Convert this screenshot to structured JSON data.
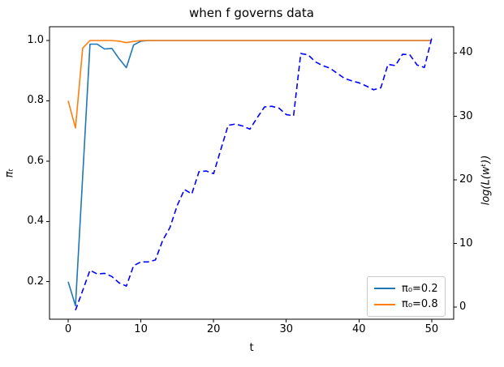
{
  "chart": {
    "title": "when f governs data",
    "xlabel": "t",
    "ylabel_left": "πₜ",
    "ylabel_right": "log(L(wᵗ))"
  },
  "legend": {
    "position": "lower right",
    "entries": [
      {
        "label": "π₀=0.2",
        "color": "#1f77b4"
      },
      {
        "label": "π₀=0.8",
        "color": "#ff7f0e"
      }
    ]
  },
  "chart_data": {
    "type": "line",
    "title": "when f governs data",
    "xlabel": "t",
    "ylabel_left": "πₜ",
    "ylabel_right": "log(L(wᵗ))",
    "grid": false,
    "legend_position": "lower right",
    "xlim": [
      -2.57,
      53.03
    ],
    "ylim_left": [
      0.0755,
      1.0458
    ],
    "ylim_right": [
      -1.92,
      44.12
    ],
    "xticks": [
      0,
      10,
      20,
      30,
      40,
      50
    ],
    "yticks_left": [
      0.2,
      0.4,
      0.6,
      0.8,
      1.0
    ],
    "yticks_right": [
      0,
      10,
      20,
      30,
      40
    ],
    "series": [
      {
        "id": "series-pi0-02",
        "name": "π₀=0.2",
        "axis": "left",
        "color": "#1f77b4",
        "style": "solid",
        "x": [
          0,
          1,
          2,
          3,
          4,
          5,
          6,
          7,
          8,
          9,
          10,
          11,
          12,
          13,
          14,
          15,
          16,
          17,
          18,
          19,
          20,
          21,
          22,
          23,
          24,
          25,
          26,
          27,
          28,
          29,
          30,
          31,
          32,
          33,
          34,
          35,
          36,
          37,
          38,
          39,
          40,
          41,
          42,
          43,
          44,
          45,
          46,
          47,
          48,
          49,
          50
        ],
        "y": [
          0.2,
          0.12,
          0.55,
          0.988,
          0.988,
          0.972,
          0.974,
          0.94,
          0.91,
          0.985,
          0.998,
          1.0,
          1.0,
          1.0,
          1.0,
          1.0,
          1.0,
          1.0,
          1.0,
          1.0,
          1.0,
          1.0,
          1.0,
          1.0,
          1.0,
          1.0,
          1.0,
          1.0,
          1.0,
          1.0,
          1.0,
          1.0,
          1.0,
          1.0,
          1.0,
          1.0,
          1.0,
          1.0,
          1.0,
          1.0,
          1.0,
          1.0,
          1.0,
          1.0,
          1.0,
          1.0,
          1.0,
          1.0,
          1.0,
          1.0,
          1.0
        ]
      },
      {
        "id": "series-pi0-08",
        "name": "π₀=0.8",
        "axis": "left",
        "color": "#ff7f0e",
        "style": "solid",
        "x": [
          0,
          1,
          2,
          3,
          4,
          5,
          6,
          7,
          8,
          9,
          10,
          11,
          12,
          13,
          14,
          15,
          16,
          17,
          18,
          19,
          20,
          21,
          22,
          23,
          24,
          25,
          26,
          27,
          28,
          29,
          30,
          31,
          32,
          33,
          34,
          35,
          36,
          37,
          38,
          39,
          40,
          41,
          42,
          43,
          44,
          45,
          46,
          47,
          48,
          49,
          50
        ],
        "y": [
          0.8,
          0.71,
          0.975,
          1.0,
          1.0,
          1.0,
          1.0,
          0.998,
          0.993,
          0.997,
          1.0,
          1.0,
          1.0,
          1.0,
          1.0,
          1.0,
          1.0,
          1.0,
          1.0,
          1.0,
          1.0,
          1.0,
          1.0,
          1.0,
          1.0,
          1.0,
          1.0,
          1.0,
          1.0,
          1.0,
          1.0,
          1.0,
          1.0,
          1.0,
          1.0,
          1.0,
          1.0,
          1.0,
          1.0,
          1.0,
          1.0,
          1.0,
          1.0,
          1.0,
          1.0,
          1.0,
          1.0,
          1.0,
          1.0,
          1.0,
          1.0
        ]
      },
      {
        "id": "series-loglik",
        "name": "log-likelihood",
        "axis": "right",
        "color": "#0000ff",
        "style": "dashed",
        "x": [
          1,
          2,
          3,
          4,
          5,
          6,
          7,
          8,
          9,
          10,
          11,
          12,
          13,
          14,
          15,
          16,
          17,
          18,
          19,
          20,
          21,
          22,
          23,
          24,
          25,
          26,
          27,
          28,
          29,
          30,
          31,
          32,
          33,
          34,
          35,
          36,
          37,
          38,
          39,
          40,
          41,
          42,
          43,
          44,
          45,
          46,
          47,
          48,
          49,
          50
        ],
        "y": [
          -0.5,
          2.6,
          5.8,
          5.2,
          5.3,
          4.8,
          3.8,
          3.3,
          6.5,
          7.1,
          7.1,
          7.4,
          10.5,
          12.5,
          16.0,
          18.5,
          17.8,
          21.3,
          21.4,
          21.0,
          24.8,
          28.6,
          28.8,
          28.5,
          28.0,
          29.8,
          31.5,
          31.6,
          31.3,
          30.3,
          30.1,
          39.9,
          39.7,
          38.6,
          38.0,
          37.6,
          36.8,
          36.0,
          35.6,
          35.3,
          34.8,
          34.2,
          34.5,
          38.2,
          38.0,
          39.8,
          39.7,
          38.1,
          37.7,
          42.3
        ]
      }
    ]
  }
}
